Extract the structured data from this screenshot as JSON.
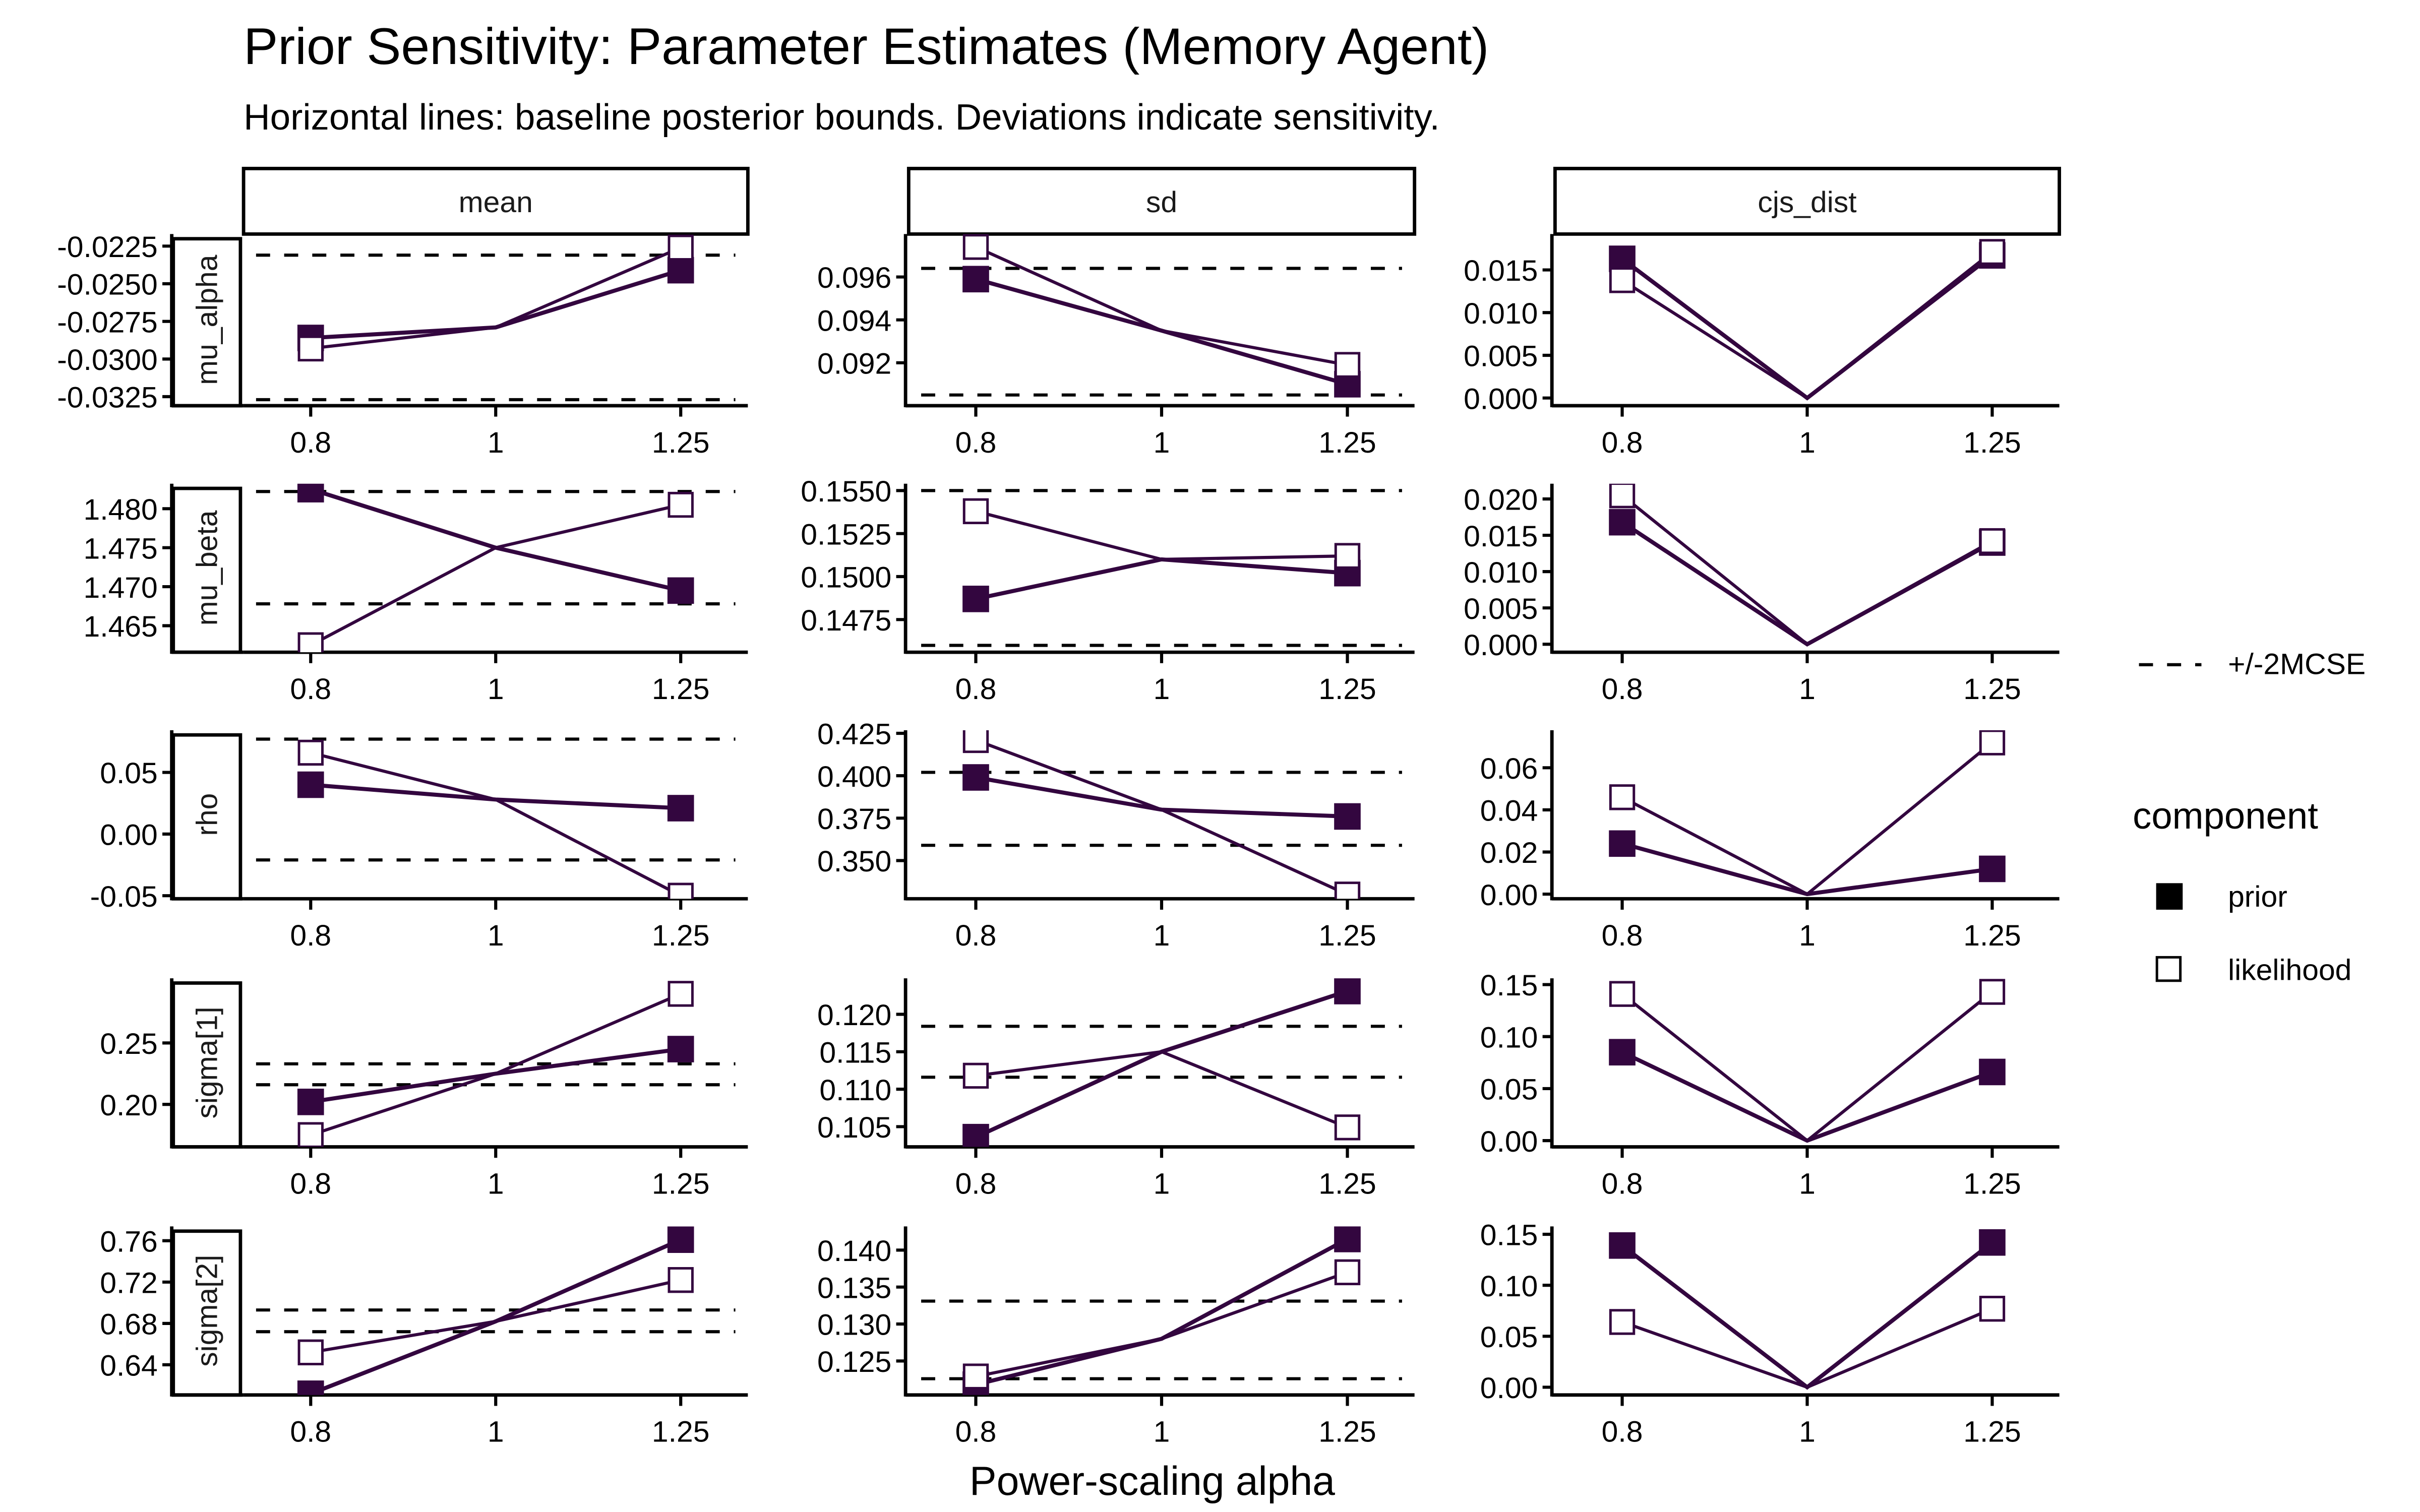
{
  "chart_data": {
    "type": "line",
    "title": "Prior Sensitivity: Parameter Estimates (Memory Agent)",
    "subtitle": "Horizontal lines: baseline posterior bounds. Deviations indicate sensitivity.",
    "xlabel": "Power-scaling alpha",
    "ylabel": "",
    "x": [
      0.8,
      1,
      1.25
    ],
    "x_tick_labels": [
      "0.8",
      "1",
      "1.25"
    ],
    "x_scale": "log",
    "columns": [
      "mean",
      "sd",
      "cjs_dist"
    ],
    "rows": [
      "mu_alpha",
      "mu_beta",
      "rho",
      "sigma[1]",
      "sigma[2]"
    ],
    "colors": {
      "series": "#33063f",
      "bounds": "#000000"
    },
    "legend": {
      "placement": "right",
      "bounds_label": "+/-2MCSE",
      "component_title": "component",
      "items": [
        {
          "name": "prior",
          "marker": "filled-square"
        },
        {
          "name": "likelihood",
          "marker": "open-square"
        }
      ]
    },
    "grid": false,
    "panels": [
      {
        "row": "mu_alpha",
        "col": "mean",
        "ylim": [
          -0.0331,
          -0.0217
        ],
        "yticks": [
          -0.0325,
          -0.03,
          -0.0275,
          -0.025,
          -0.0225
        ],
        "ytick_labels": [
          "-0.0325",
          "-0.0300",
          "-0.0275",
          "-0.0250",
          "-0.0225"
        ],
        "bounds": [
          -0.0327,
          -0.0231
        ],
        "series": [
          {
            "name": "prior",
            "values": [
              -0.0286,
              -0.0279,
              -0.0241
            ]
          },
          {
            "name": "likelihood",
            "values": [
              -0.0293,
              -0.0279,
              -0.0226
            ]
          }
        ]
      },
      {
        "row": "mu_alpha",
        "col": "sd",
        "ylim": [
          0.09,
          0.098
        ],
        "yticks": [
          0.092,
          0.094,
          0.096
        ],
        "ytick_labels": [
          "0.092",
          "0.094",
          "0.096"
        ],
        "bounds": [
          0.0905,
          0.0964
        ],
        "series": [
          {
            "name": "prior",
            "values": [
              0.0959,
              0.0935,
              0.091
            ]
          },
          {
            "name": "likelihood",
            "values": [
              0.0974,
              0.0935,
              0.0919
            ]
          }
        ]
      },
      {
        "row": "mu_alpha",
        "col": "cjs_dist",
        "ylim": [
          -0.0009,
          0.0192
        ],
        "yticks": [
          0,
          0.005,
          0.01,
          0.015
        ],
        "ytick_labels": [
          "0.000",
          "0.005",
          "0.010",
          "0.015"
        ],
        "bounds": null,
        "series": [
          {
            "name": "prior",
            "values": [
              0.0163,
              0,
              0.0167
            ]
          },
          {
            "name": "likelihood",
            "values": [
              0.0138,
              0,
              0.0171
            ]
          }
        ]
      },
      {
        "row": "mu_beta",
        "col": "mean",
        "ylim": [
          1.4616,
          1.4832
        ],
        "yticks": [
          1.465,
          1.47,
          1.475,
          1.48
        ],
        "ytick_labels": [
          "1.465",
          "1.470",
          "1.475",
          "1.480"
        ],
        "bounds": [
          1.4678,
          1.4822
        ],
        "series": [
          {
            "name": "prior",
            "values": [
              1.4825,
              1.475,
              1.4695
            ]
          },
          {
            "name": "likelihood",
            "values": [
              1.4625,
              1.475,
              1.4805
            ]
          }
        ]
      },
      {
        "row": "mu_beta",
        "col": "sd",
        "ylim": [
          0.1456,
          0.1554
        ],
        "yticks": [
          0.1475,
          0.15,
          0.1525,
          0.155
        ],
        "ytick_labels": [
          "0.1475",
          "0.1500",
          "0.1525",
          "0.1550"
        ],
        "bounds": [
          0.146,
          0.155
        ],
        "series": [
          {
            "name": "prior",
            "values": [
              0.1487,
              0.151,
              0.1502
            ]
          },
          {
            "name": "likelihood",
            "values": [
              0.1538,
              0.151,
              0.1512
            ]
          }
        ]
      },
      {
        "row": "mu_beta",
        "col": "cjs_dist",
        "ylim": [
          -0.0011,
          0.0221
        ],
        "yticks": [
          0,
          0.005,
          0.01,
          0.015,
          0.02
        ],
        "ytick_labels": [
          "0.000",
          "0.005",
          "0.010",
          "0.015",
          "0.020"
        ],
        "bounds": null,
        "series": [
          {
            "name": "prior",
            "values": [
              0.0168,
              0,
              0.014
            ]
          },
          {
            "name": "likelihood",
            "values": [
              0.0205,
              0,
              0.0142
            ]
          }
        ]
      },
      {
        "row": "rho",
        "col": "mean",
        "ylim": [
          -0.0525,
          0.0842
        ],
        "yticks": [
          -0.05,
          0,
          0.05
        ],
        "ytick_labels": [
          "-0.05",
          "0.00",
          "0.05"
        ],
        "bounds": [
          -0.021,
          0.077
        ],
        "series": [
          {
            "name": "prior",
            "values": [
              0.04,
              0.028,
              0.021
            ]
          },
          {
            "name": "likelihood",
            "values": [
              0.066,
              0.028,
              -0.05
            ]
          }
        ]
      },
      {
        "row": "rho",
        "col": "sd",
        "ylim": [
          0.3275,
          0.4268
        ],
        "yticks": [
          0.35,
          0.375,
          0.4,
          0.425
        ],
        "ytick_labels": [
          "0.350",
          "0.375",
          "0.400",
          "0.425"
        ],
        "bounds": [
          0.359,
          0.402
        ],
        "series": [
          {
            "name": "prior",
            "values": [
              0.399,
              0.38,
              0.376
            ]
          },
          {
            "name": "likelihood",
            "values": [
              0.421,
              0.38,
              0.33
            ]
          }
        ]
      },
      {
        "row": "rho",
        "col": "cjs_dist",
        "ylim": [
          -0.0022,
          0.0778
        ],
        "yticks": [
          0,
          0.02,
          0.04,
          0.06
        ],
        "ytick_labels": [
          "0.00",
          "0.02",
          "0.04",
          "0.06"
        ],
        "bounds": null,
        "series": [
          {
            "name": "prior",
            "values": [
              0.024,
              0,
              0.012
            ]
          },
          {
            "name": "likelihood",
            "values": [
              0.046,
              0,
              0.072
            ]
          }
        ]
      },
      {
        "row": "sigma[1]",
        "col": "mean",
        "ylim": [
          0.1654,
          0.3026
        ],
        "yticks": [
          0.2,
          0.25
        ],
        "ytick_labels": [
          "0.20",
          "0.25"
        ],
        "bounds": [
          0.216,
          0.233
        ],
        "series": [
          {
            "name": "prior",
            "values": [
              0.202,
              0.225,
              0.245
            ]
          },
          {
            "name": "likelihood",
            "values": [
              0.175,
              0.225,
              0.29
            ]
          }
        ]
      },
      {
        "row": "sigma[1]",
        "col": "sd",
        "ylim": [
          0.1023,
          0.1248
        ],
        "yticks": [
          0.105,
          0.11,
          0.115,
          0.12
        ],
        "ytick_labels": [
          "0.105",
          "0.110",
          "0.115",
          "0.120"
        ],
        "bounds": [
          0.1116,
          0.1184
        ],
        "series": [
          {
            "name": "prior",
            "values": [
              0.1036,
              0.115,
              0.1231
            ]
          },
          {
            "name": "likelihood",
            "values": [
              0.1118,
              0.115,
              0.1049
            ]
          }
        ]
      },
      {
        "row": "sigma[1]",
        "col": "cjs_dist",
        "ylim": [
          -0.006,
          0.156
        ],
        "yticks": [
          0,
          0.05,
          0.1,
          0.15
        ],
        "ytick_labels": [
          "0.00",
          "0.05",
          "0.10",
          "0.15"
        ],
        "bounds": null,
        "series": [
          {
            "name": "prior",
            "values": [
              0.085,
              0,
              0.066
            ]
          },
          {
            "name": "likelihood",
            "values": [
              0.141,
              0,
              0.143
            ]
          }
        ]
      },
      {
        "row": "sigma[2]",
        "col": "mean",
        "ylim": [
          0.6108,
          0.7738
        ],
        "yticks": [
          0.64,
          0.68,
          0.72,
          0.76
        ],
        "ytick_labels": [
          "0.64",
          "0.68",
          "0.72",
          "0.76"
        ],
        "bounds": [
          0.672,
          0.693
        ],
        "series": [
          {
            "name": "prior",
            "values": [
              0.612,
              0.682,
              0.761
            ]
          },
          {
            "name": "likelihood",
            "values": [
              0.652,
              0.682,
              0.722
            ]
          }
        ]
      },
      {
        "row": "sigma[2]",
        "col": "sd",
        "ylim": [
          0.1204,
          0.1432
        ],
        "yticks": [
          0.125,
          0.13,
          0.135,
          0.14
        ],
        "ytick_labels": [
          "0.125",
          "0.130",
          "0.135",
          "0.140"
        ],
        "bounds": [
          0.1226,
          0.1331
        ],
        "series": [
          {
            "name": "prior",
            "values": [
              0.1218,
              0.128,
              0.1415
            ]
          },
          {
            "name": "likelihood",
            "values": [
              0.1229,
              0.128,
              0.137
            ]
          }
        ]
      },
      {
        "row": "sigma[2]",
        "col": "cjs_dist",
        "ylim": [
          -0.0076,
          0.1577
        ],
        "yticks": [
          0,
          0.05,
          0.1,
          0.15
        ],
        "ytick_labels": [
          "0.00",
          "0.05",
          "0.10",
          "0.15"
        ],
        "bounds": null,
        "series": [
          {
            "name": "prior",
            "values": [
              0.139,
              0,
              0.142
            ]
          },
          {
            "name": "likelihood",
            "values": [
              0.064,
              0,
              0.077
            ]
          }
        ]
      }
    ]
  }
}
